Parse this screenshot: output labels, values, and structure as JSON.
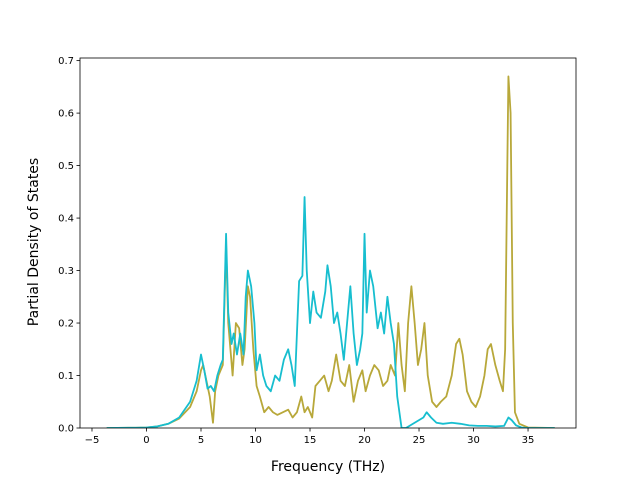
{
  "chart_data": {
    "type": "line",
    "xlabel": "Frequency (THz)",
    "ylabel": "Partial Density of States",
    "xlim": [
      -6.1,
      39.4
    ],
    "ylim": [
      0,
      0.705
    ],
    "xticks": [
      -5,
      0,
      5,
      10,
      15,
      20,
      25,
      30,
      35
    ],
    "xtick_labels": [
      "−5",
      "0",
      "5",
      "10",
      "15",
      "20",
      "25",
      "30",
      "35"
    ],
    "yticks": [
      0.0,
      0.1,
      0.2,
      0.3,
      0.4,
      0.5,
      0.6,
      0.7
    ],
    "ytick_labels": [
      "0.0",
      "0.1",
      "0.2",
      "0.3",
      "0.4",
      "0.5",
      "0.6",
      "0.7"
    ],
    "grid": false,
    "legend": "none",
    "series": [
      {
        "color": "#b8a83a",
        "points": [
          [
            -3.6,
            0
          ],
          [
            -1,
            0.0005
          ],
          [
            0,
            0.001
          ],
          [
            1,
            0.003
          ],
          [
            2,
            0.008
          ],
          [
            3,
            0.018
          ],
          [
            4,
            0.04
          ],
          [
            4.6,
            0.07
          ],
          [
            5,
            0.11
          ],
          [
            5.2,
            0.12
          ],
          [
            5.5,
            0.09
          ],
          [
            5.8,
            0.06
          ],
          [
            6.1,
            0.01
          ],
          [
            6.3,
            0.07
          ],
          [
            6.6,
            0.1
          ],
          [
            7.0,
            0.12
          ],
          [
            7.3,
            0.35
          ],
          [
            7.5,
            0.2
          ],
          [
            7.9,
            0.1
          ],
          [
            8.2,
            0.2
          ],
          [
            8.5,
            0.19
          ],
          [
            8.8,
            0.12
          ],
          [
            9.0,
            0.15
          ],
          [
            9.3,
            0.27
          ],
          [
            9.5,
            0.25
          ],
          [
            9.8,
            0.15
          ],
          [
            10.1,
            0.08
          ],
          [
            10.4,
            0.06
          ],
          [
            10.8,
            0.03
          ],
          [
            11.2,
            0.04
          ],
          [
            11.6,
            0.03
          ],
          [
            12.0,
            0.025
          ],
          [
            12.5,
            0.03
          ],
          [
            13.0,
            0.035
          ],
          [
            13.4,
            0.02
          ],
          [
            13.8,
            0.03
          ],
          [
            14.2,
            0.06
          ],
          [
            14.5,
            0.03
          ],
          [
            14.8,
            0.04
          ],
          [
            15.2,
            0.02
          ],
          [
            15.5,
            0.08
          ],
          [
            15.9,
            0.09
          ],
          [
            16.3,
            0.1
          ],
          [
            16.7,
            0.07
          ],
          [
            17.0,
            0.09
          ],
          [
            17.4,
            0.14
          ],
          [
            17.8,
            0.09
          ],
          [
            18.2,
            0.08
          ],
          [
            18.6,
            0.12
          ],
          [
            19.0,
            0.05
          ],
          [
            19.4,
            0.09
          ],
          [
            19.8,
            0.11
          ],
          [
            20.1,
            0.07
          ],
          [
            20.5,
            0.1
          ],
          [
            20.9,
            0.12
          ],
          [
            21.3,
            0.11
          ],
          [
            21.7,
            0.08
          ],
          [
            22.1,
            0.09
          ],
          [
            22.4,
            0.12
          ],
          [
            22.8,
            0.1
          ],
          [
            23.1,
            0.2
          ],
          [
            23.4,
            0.12
          ],
          [
            23.7,
            0.07
          ],
          [
            24.0,
            0.2
          ],
          [
            24.3,
            0.27
          ],
          [
            24.6,
            0.2
          ],
          [
            24.9,
            0.12
          ],
          [
            25.2,
            0.15
          ],
          [
            25.5,
            0.2
          ],
          [
            25.8,
            0.1
          ],
          [
            26.2,
            0.05
          ],
          [
            26.6,
            0.04
          ],
          [
            27.0,
            0.05
          ],
          [
            27.5,
            0.06
          ],
          [
            28.0,
            0.1
          ],
          [
            28.4,
            0.16
          ],
          [
            28.7,
            0.17
          ],
          [
            29.0,
            0.14
          ],
          [
            29.4,
            0.07
          ],
          [
            29.8,
            0.05
          ],
          [
            30.2,
            0.04
          ],
          [
            30.6,
            0.06
          ],
          [
            31.0,
            0.1
          ],
          [
            31.3,
            0.15
          ],
          [
            31.6,
            0.16
          ],
          [
            32.0,
            0.12
          ],
          [
            32.4,
            0.09
          ],
          [
            32.7,
            0.07
          ],
          [
            32.9,
            0.15
          ],
          [
            33.1,
            0.5
          ],
          [
            33.2,
            0.67
          ],
          [
            33.4,
            0.6
          ],
          [
            33.6,
            0.2
          ],
          [
            33.8,
            0.03
          ],
          [
            34.2,
            0.008
          ],
          [
            35,
            0.001
          ],
          [
            37.4,
            0
          ]
        ]
      },
      {
        "color": "#17becf",
        "points": [
          [
            -3.6,
            0
          ],
          [
            -1,
            0.0005
          ],
          [
            0,
            0.001
          ],
          [
            1,
            0.003
          ],
          [
            2,
            0.008
          ],
          [
            3,
            0.02
          ],
          [
            4,
            0.05
          ],
          [
            4.6,
            0.09
          ],
          [
            5,
            0.14
          ],
          [
            5.3,
            0.11
          ],
          [
            5.6,
            0.075
          ],
          [
            5.9,
            0.08
          ],
          [
            6.2,
            0.07
          ],
          [
            6.5,
            0.1
          ],
          [
            6.8,
            0.12
          ],
          [
            7.0,
            0.13
          ],
          [
            7.3,
            0.37
          ],
          [
            7.5,
            0.22
          ],
          [
            7.8,
            0.16
          ],
          [
            8.0,
            0.18
          ],
          [
            8.3,
            0.14
          ],
          [
            8.6,
            0.18
          ],
          [
            8.9,
            0.14
          ],
          [
            9.1,
            0.25
          ],
          [
            9.3,
            0.3
          ],
          [
            9.6,
            0.27
          ],
          [
            9.9,
            0.2
          ],
          [
            10.1,
            0.11
          ],
          [
            10.4,
            0.14
          ],
          [
            10.7,
            0.1
          ],
          [
            11.0,
            0.08
          ],
          [
            11.4,
            0.07
          ],
          [
            11.8,
            0.1
          ],
          [
            12.2,
            0.09
          ],
          [
            12.6,
            0.13
          ],
          [
            13.0,
            0.15
          ],
          [
            13.3,
            0.12
          ],
          [
            13.6,
            0.08
          ],
          [
            14.0,
            0.28
          ],
          [
            14.3,
            0.29
          ],
          [
            14.5,
            0.44
          ],
          [
            14.7,
            0.3
          ],
          [
            15.0,
            0.2
          ],
          [
            15.3,
            0.26
          ],
          [
            15.6,
            0.22
          ],
          [
            16.0,
            0.21
          ],
          [
            16.4,
            0.26
          ],
          [
            16.6,
            0.31
          ],
          [
            16.9,
            0.27
          ],
          [
            17.2,
            0.2
          ],
          [
            17.5,
            0.22
          ],
          [
            17.8,
            0.18
          ],
          [
            18.1,
            0.13
          ],
          [
            18.4,
            0.2
          ],
          [
            18.7,
            0.27
          ],
          [
            19.0,
            0.18
          ],
          [
            19.3,
            0.12
          ],
          [
            19.6,
            0.15
          ],
          [
            19.8,
            0.18
          ],
          [
            20.0,
            0.37
          ],
          [
            20.2,
            0.22
          ],
          [
            20.5,
            0.3
          ],
          [
            20.8,
            0.27
          ],
          [
            21.2,
            0.19
          ],
          [
            21.5,
            0.22
          ],
          [
            21.8,
            0.18
          ],
          [
            22.1,
            0.25
          ],
          [
            22.4,
            0.2
          ],
          [
            22.7,
            0.16
          ],
          [
            23.0,
            0.06
          ],
          [
            23.4,
            0
          ],
          [
            23.8,
            0
          ],
          [
            24.2,
            0.005
          ],
          [
            24.6,
            0.01
          ],
          [
            25.0,
            0.015
          ],
          [
            25.4,
            0.02
          ],
          [
            25.7,
            0.03
          ],
          [
            26.1,
            0.02
          ],
          [
            26.6,
            0.01
          ],
          [
            27.2,
            0.008
          ],
          [
            28.0,
            0.01
          ],
          [
            28.8,
            0.008
          ],
          [
            29.6,
            0.005
          ],
          [
            30.4,
            0.004
          ],
          [
            31.2,
            0.004
          ],
          [
            32.0,
            0.003
          ],
          [
            32.8,
            0.004
          ],
          [
            33.2,
            0.02
          ],
          [
            33.5,
            0.015
          ],
          [
            33.9,
            0.005
          ],
          [
            34.4,
            0.001
          ],
          [
            35,
            0
          ],
          [
            37.4,
            0
          ]
        ]
      }
    ]
  }
}
